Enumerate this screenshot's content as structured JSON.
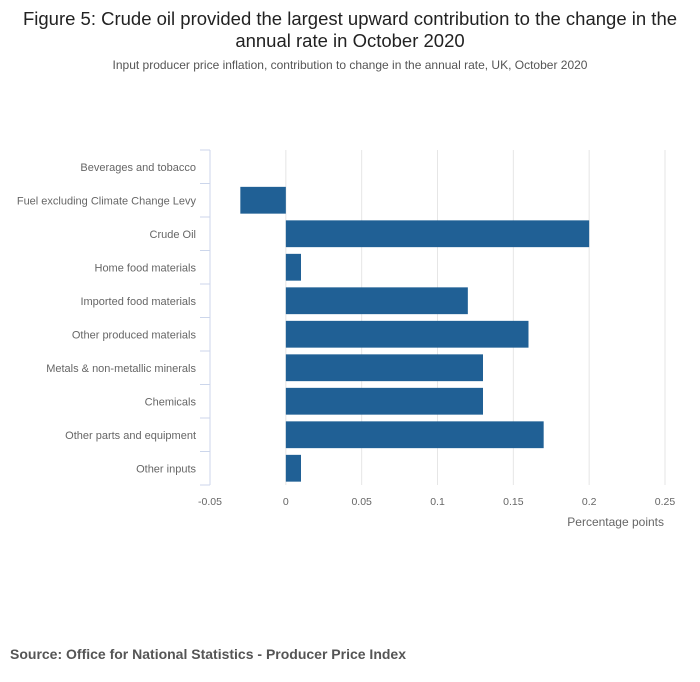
{
  "title": "Figure 5: Crude oil provided the largest upward contribution to the change in the annual rate in October 2020",
  "subtitle": "Input producer price inflation, contribution to change in the annual rate, UK, October 2020",
  "source": "Source: Office for National Statistics - Producer Price Index",
  "colors": {
    "bar": "#206095",
    "grid": "#e6e6e6",
    "axis": "#ccd6eb",
    "label": "#666666"
  },
  "chart_data": {
    "type": "bar",
    "orientation": "horizontal",
    "categories": [
      "Beverages and tobacco",
      "Fuel excluding Climate Change Levy",
      "Crude Oil",
      "Home food materials",
      "Imported food materials",
      "Other produced materials",
      "Metals & non-metallic minerals",
      "Chemicals",
      "Other parts and equipment",
      "Other inputs"
    ],
    "values": [
      0,
      -0.03,
      0.2,
      0.01,
      0.12,
      0.16,
      0.13,
      0.13,
      0.17,
      0.01
    ],
    "xlabel": "Percentage points",
    "ylabel": "",
    "xlim": [
      -0.05,
      0.25
    ],
    "xticks": [
      -0.05,
      0,
      0.05,
      0.1,
      0.15,
      0.2,
      0.25
    ],
    "xtick_labels": [
      "-0.05",
      "0",
      "0.05",
      "0.1",
      "0.15",
      "0.2",
      "0.25"
    ],
    "grid": true,
    "legend": "none"
  }
}
